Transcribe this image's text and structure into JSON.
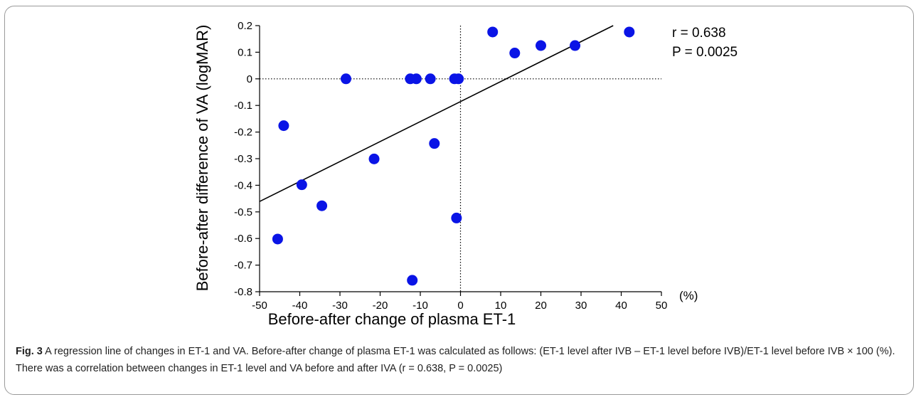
{
  "chart_data": {
    "type": "scatter",
    "xlabel": "Before-after change of plasma ET-1",
    "ylabel": "Before-after difference of VA (logMAR)",
    "x_unit": "(%)",
    "xlim": [
      -50,
      50
    ],
    "ylim": [
      -0.8,
      0.2
    ],
    "x_ticks": [
      "-50",
      "-40",
      "-30",
      "-20",
      "-10",
      "0",
      "10",
      "20",
      "30",
      "40",
      "50"
    ],
    "y_ticks": [
      "0.2",
      "0.1",
      "0",
      "-0.1",
      "-0.2",
      "-0.3",
      "-0.4",
      "-0.5",
      "-0.6",
      "-0.7",
      "-0.8"
    ],
    "points": [
      {
        "x": 8,
        "y": 0.176
      },
      {
        "x": 13.5,
        "y": 0.097
      },
      {
        "x": 20,
        "y": 0.125
      },
      {
        "x": 28.5,
        "y": 0.125
      },
      {
        "x": 42,
        "y": 0.176
      },
      {
        "x": -28.5,
        "y": 0
      },
      {
        "x": -12.5,
        "y": 0
      },
      {
        "x": -11,
        "y": 0
      },
      {
        "x": -7.5,
        "y": 0
      },
      {
        "x": -1.5,
        "y": 0
      },
      {
        "x": -0.5,
        "y": 0
      },
      {
        "x": -44,
        "y": -0.176
      },
      {
        "x": -21.5,
        "y": -0.301
      },
      {
        "x": -6.5,
        "y": -0.243
      },
      {
        "x": -39.5,
        "y": -0.398
      },
      {
        "x": -34.5,
        "y": -0.477
      },
      {
        "x": -1,
        "y": -0.523
      },
      {
        "x": -45.5,
        "y": -0.602
      },
      {
        "x": -12,
        "y": -0.757
      }
    ],
    "regression_line": {
      "x": [
        -50,
        38
      ],
      "y": [
        -0.461,
        0.2
      ]
    },
    "reference_lines": {
      "x": 0,
      "y": 0
    },
    "annotations": {
      "r": "r = 0.638",
      "p": "P = 0.0025"
    },
    "colors": {
      "point": "#0a14e6",
      "line": "#000000"
    },
    "grid": false
  },
  "caption": {
    "label": "Fig. 3",
    "text": " A regression line of changes in ET-1 and VA. Before-after change of plasma ET-1 was calculated as follows: (ET-1 level after IVB – ET-1 level before IVB)/ET-1 level before IVB × 100 (%). There was a correlation between changes in ET-1 level and VA before and after IVA (r = 0.638, P = 0.0025)"
  }
}
